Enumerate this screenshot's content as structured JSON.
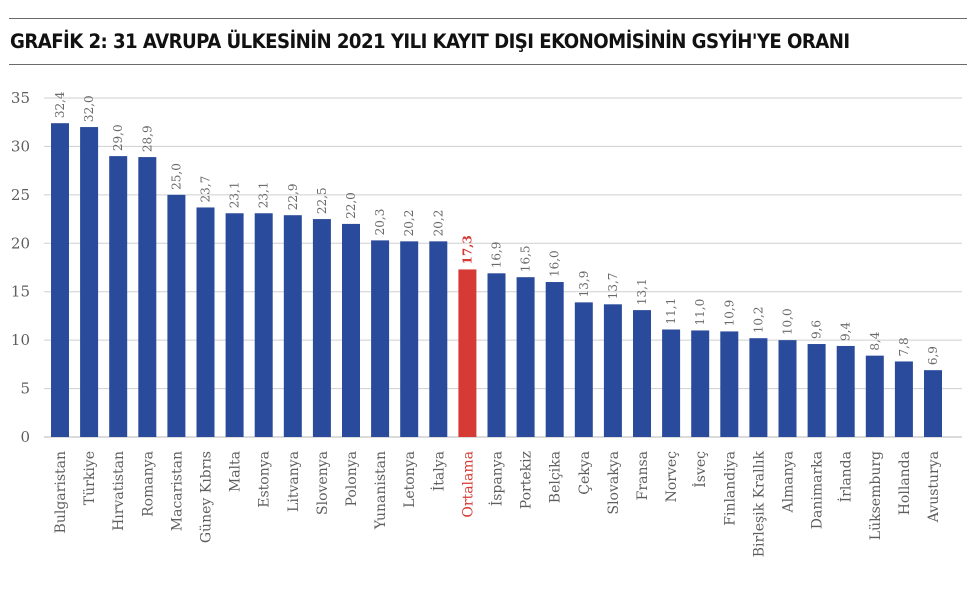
{
  "title": "GRAFİK 2: 31 AVRUPA ÜLKESİNİN 2021 YILI KAYIT DIŞI EKONOMİSİNİN GSYİH'YE ORANI",
  "colors": {
    "bar": "#2a4b9b",
    "highlight": "#d63a34",
    "grid": "#cfcfcf"
  },
  "chart_data": {
    "type": "bar",
    "title": "GRAFİK 2: 31 AVRUPA ÜLKESİNİN 2021 YILI KAYIT DIŞI EKONOMİSİNİN GSYİH'YE ORANI",
    "xlabel": "",
    "ylabel": "",
    "ylim": [
      0,
      35
    ],
    "yticks": [
      "0",
      "5",
      "10",
      "15",
      "20",
      "25",
      "30",
      "35"
    ],
    "grid": true,
    "highlight_category": "Ortalama",
    "categories": [
      "Bulgaristan",
      "Türkiye",
      "Hırvatistan",
      "Romanya",
      "Macaristan",
      "Güney Kıbrıs",
      "Malta",
      "Estonya",
      "Litvanya",
      "Slovenya",
      "Polonya",
      "Yunanistan",
      "Letonya",
      "İtalya",
      "Ortalama",
      "İspanya",
      "Portekiz",
      "Belçika",
      "Çekya",
      "Slovakya",
      "Fransa",
      "Norveç",
      "İsveç",
      "Finlandiya",
      "Birleşik Krallık",
      "Almanya",
      "Danimarka",
      "İrlanda",
      "Lüksemburg",
      "Hollanda",
      "Avusturya"
    ],
    "values": [
      32.4,
      32.0,
      29.0,
      28.9,
      25.0,
      23.7,
      23.1,
      23.1,
      22.9,
      22.5,
      22.0,
      20.3,
      20.2,
      20.2,
      17.3,
      16.9,
      16.5,
      16.0,
      13.9,
      13.7,
      13.1,
      11.1,
      11.0,
      10.9,
      10.2,
      10.0,
      9.6,
      9.4,
      8.4,
      7.8,
      6.9
    ],
    "value_labels": [
      "32,4",
      "32,0",
      "29,0",
      "28,9",
      "25,0",
      "23,7",
      "23,1",
      "23,1",
      "22,9",
      "22,5",
      "22,0",
      "20,3",
      "20,2",
      "20,2",
      "17,3",
      "16,9",
      "16,5",
      "16,0",
      "13,9",
      "13,7",
      "13,1",
      "11,1",
      "11,0",
      "10,9",
      "10,2",
      "10,0",
      "9,6",
      "9,4",
      "8,4",
      "7,8",
      "6,9"
    ]
  }
}
